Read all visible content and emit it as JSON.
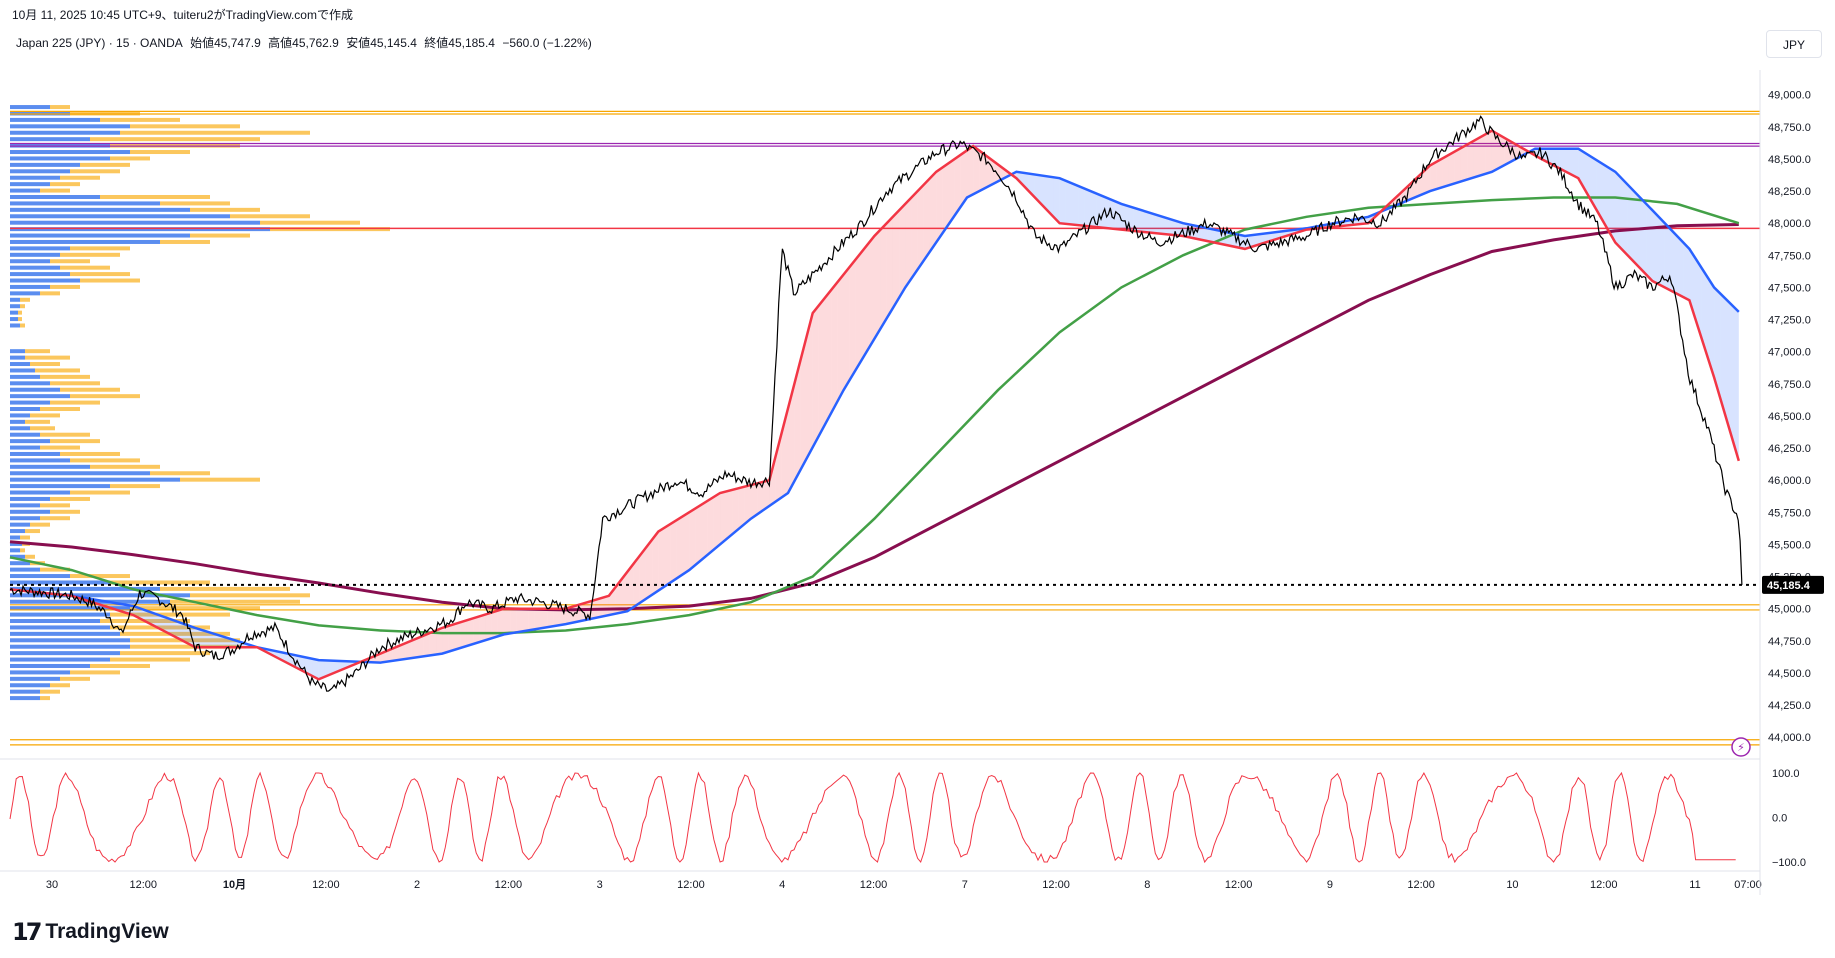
{
  "header": {
    "created_line": "10月 11, 2025 10:45 UTC+9、tuiteru2がTradingView.comで作成"
  },
  "symbol": {
    "name": "Japan 225 (JPY) · 15 · OANDA",
    "open": "始値45,747.9",
    "high": "高値45,762.9",
    "low": "安値45,145.4",
    "close": "終値45,185.4",
    "change": "−560.0 (−1.22%)"
  },
  "currency_button": "JPY",
  "logo": {
    "mark": "17",
    "text": "TradingView"
  },
  "colors": {
    "price": "#000000",
    "ema_fast": "#f23645",
    "ema_slow": "#2962ff",
    "sma_green": "#43a047",
    "sma_maroon": "#880e4f",
    "vp_up": "#5b8def",
    "vp_down": "#fbc75e",
    "hline_orange": "#f7a600",
    "hline_purple": "#9c27b0",
    "hline_red": "#f23645",
    "oscillator": "#f23645"
  },
  "chart_data": {
    "type": "line",
    "y_axis": {
      "min": 43900,
      "max": 49130,
      "ticks": [
        "49,000.0",
        "48,750.0",
        "48,500.0",
        "48,250.0",
        "48,000.0",
        "47,750.0",
        "47,500.0",
        "47,250.0",
        "47,000.0",
        "46,750.0",
        "46,500.0",
        "46,250.0",
        "46,000.0",
        "45,750.0",
        "45,500.0",
        "45,250.0",
        "45,000.0",
        "44,750.0",
        "44,500.0",
        "44,250.0",
        "44,000.0"
      ],
      "tick_values": [
        49000,
        48750,
        48500,
        48250,
        48000,
        47750,
        47500,
        47250,
        47000,
        46750,
        46500,
        46250,
        46000,
        45750,
        45500,
        45250,
        45000,
        44750,
        44500,
        44250,
        44000
      ]
    },
    "x_axis": {
      "labels": [
        "30",
        "12:00",
        "10月",
        "12:00",
        "2",
        "12:00",
        "3",
        "12:00",
        "4",
        "12:00",
        "7",
        "12:00",
        "8",
        "12:00",
        "9",
        "12:00",
        "10",
        "12:00",
        "11",
        "07:00"
      ],
      "positions": [
        1,
        2,
        3,
        4,
        5,
        6,
        7,
        8,
        9,
        10,
        11,
        12,
        13,
        14,
        15,
        16,
        17,
        18,
        19,
        20
      ]
    },
    "last_price": {
      "label": "45,185.4",
      "value": 45185.4
    },
    "horizontal_lines": [
      {
        "value": 48870,
        "color": "orange"
      },
      {
        "value": 48850,
        "color": "orange"
      },
      {
        "value": 48620,
        "color": "purple"
      },
      {
        "value": 48600,
        "color": "purple"
      },
      {
        "value": 47960,
        "color": "red"
      },
      {
        "value": 45030,
        "color": "orange"
      },
      {
        "value": 44990,
        "color": "orange"
      },
      {
        "value": 43980,
        "color": "orange"
      },
      {
        "value": 43940,
        "color": "orange"
      }
    ],
    "price": [
      [
        0,
        45150
      ],
      [
        0.5,
        45130
      ],
      [
        1,
        45100
      ],
      [
        1.3,
        45050
      ],
      [
        1.6,
        44950
      ],
      [
        1.8,
        44800
      ],
      [
        2.1,
        45120
      ],
      [
        2.4,
        45080
      ],
      [
        2.8,
        44950
      ],
      [
        3,
        44700
      ],
      [
        3.3,
        44630
      ],
      [
        3.6,
        44680
      ],
      [
        3.9,
        44800
      ],
      [
        4.3,
        44850
      ],
      [
        4.6,
        44620
      ],
      [
        4.9,
        44420
      ],
      [
        5.2,
        44350
      ],
      [
        5.6,
        44500
      ],
      [
        6,
        44700
      ],
      [
        6.4,
        44780
      ],
      [
        6.8,
        44850
      ],
      [
        7.1,
        44900
      ],
      [
        7.4,
        45050
      ],
      [
        7.8,
        45000
      ],
      [
        8.2,
        45080
      ],
      [
        8.6,
        45050
      ],
      [
        9,
        45000
      ],
      [
        9.4,
        44950
      ],
      [
        9.6,
        45700
      ],
      [
        10,
        45800
      ],
      [
        10.4,
        45900
      ],
      [
        10.8,
        46000
      ],
      [
        11.2,
        45900
      ],
      [
        11.6,
        46050
      ],
      [
        12,
        45980
      ],
      [
        12.3,
        46000
      ],
      [
        12.5,
        47800
      ],
      [
        12.7,
        47450
      ],
      [
        13,
        47600
      ],
      [
        13.4,
        47800
      ],
      [
        13.8,
        48000
      ],
      [
        14.2,
        48250
      ],
      [
        14.6,
        48400
      ],
      [
        15,
        48550
      ],
      [
        15.4,
        48620
      ],
      [
        15.8,
        48500
      ],
      [
        16,
        48400
      ],
      [
        16.3,
        48200
      ],
      [
        16.6,
        47900
      ],
      [
        17,
        47800
      ],
      [
        17.4,
        47950
      ],
      [
        17.8,
        48100
      ],
      [
        18.2,
        47950
      ],
      [
        18.6,
        47850
      ],
      [
        19,
        47920
      ],
      [
        19.4,
        48000
      ],
      [
        19.8,
        47900
      ],
      [
        20.2,
        47800
      ],
      [
        20.6,
        47850
      ],
      [
        21,
        47900
      ],
      [
        21.4,
        48000
      ],
      [
        21.8,
        48050
      ],
      [
        22.2,
        48000
      ],
      [
        22.6,
        48200
      ],
      [
        23,
        48500
      ],
      [
        23.4,
        48650
      ],
      [
        23.8,
        48800
      ],
      [
        24.1,
        48650
      ],
      [
        24.5,
        48500
      ],
      [
        24.8,
        48550
      ],
      [
        25.1,
        48400
      ],
      [
        25.4,
        48150
      ],
      [
        25.7,
        48000
      ],
      [
        26,
        47500
      ],
      [
        26.3,
        47600
      ],
      [
        26.6,
        47500
      ],
      [
        26.9,
        47600
      ],
      [
        27.2,
        46800
      ],
      [
        27.5,
        46400
      ],
      [
        27.8,
        45900
      ],
      [
        28,
        45700
      ],
      [
        28.05,
        45185
      ]
    ],
    "ema_fast": [
      [
        0,
        45150
      ],
      [
        1,
        45100
      ],
      [
        2,
        44950
      ],
      [
        3,
        44700
      ],
      [
        4,
        44700
      ],
      [
        5,
        44450
      ],
      [
        6,
        44650
      ],
      [
        7,
        44850
      ],
      [
        8,
        45000
      ],
      [
        9,
        45000
      ],
      [
        9.7,
        45100
      ],
      [
        10.5,
        45600
      ],
      [
        11.5,
        45900
      ],
      [
        12.3,
        46000
      ],
      [
        13,
        47300
      ],
      [
        14,
        47900
      ],
      [
        15,
        48400
      ],
      [
        15.6,
        48600
      ],
      [
        16.3,
        48350
      ],
      [
        17,
        48000
      ],
      [
        18,
        47950
      ],
      [
        19,
        47900
      ],
      [
        20,
        47800
      ],
      [
        21,
        47950
      ],
      [
        22,
        48000
      ],
      [
        23,
        48450
      ],
      [
        24,
        48720
      ],
      [
        24.8,
        48500
      ],
      [
        25.4,
        48350
      ],
      [
        26,
        47850
      ],
      [
        26.6,
        47550
      ],
      [
        27.2,
        47400
      ],
      [
        27.6,
        46800
      ],
      [
        28,
        46150
      ]
    ],
    "ema_slow": [
      [
        0,
        45150
      ],
      [
        1,
        45100
      ],
      [
        2,
        45020
      ],
      [
        3,
        44850
      ],
      [
        4,
        44700
      ],
      [
        5,
        44600
      ],
      [
        6,
        44580
      ],
      [
        7,
        44650
      ],
      [
        8,
        44800
      ],
      [
        9,
        44880
      ],
      [
        10,
        44980
      ],
      [
        11,
        45300
      ],
      [
        12,
        45700
      ],
      [
        12.6,
        45900
      ],
      [
        13.5,
        46700
      ],
      [
        14.5,
        47500
      ],
      [
        15.5,
        48200
      ],
      [
        16.3,
        48400
      ],
      [
        17,
        48350
      ],
      [
        18,
        48150
      ],
      [
        19,
        48000
      ],
      [
        20,
        47900
      ],
      [
        21,
        47960
      ],
      [
        22,
        48050
      ],
      [
        23,
        48250
      ],
      [
        24,
        48400
      ],
      [
        24.7,
        48580
      ],
      [
        25.4,
        48580
      ],
      [
        26,
        48400
      ],
      [
        26.6,
        48100
      ],
      [
        27.2,
        47800
      ],
      [
        27.6,
        47500
      ],
      [
        28,
        47310
      ]
    ],
    "sma_green": [
      [
        0,
        45400
      ],
      [
        1,
        45300
      ],
      [
        2,
        45150
      ],
      [
        3,
        45050
      ],
      [
        4,
        44950
      ],
      [
        5,
        44870
      ],
      [
        6,
        44830
      ],
      [
        7,
        44810
      ],
      [
        8,
        44810
      ],
      [
        9,
        44830
      ],
      [
        10,
        44880
      ],
      [
        11,
        44950
      ],
      [
        12,
        45050
      ],
      [
        13,
        45250
      ],
      [
        14,
        45700
      ],
      [
        15,
        46200
      ],
      [
        16,
        46700
      ],
      [
        17,
        47150
      ],
      [
        18,
        47500
      ],
      [
        19,
        47750
      ],
      [
        20,
        47950
      ],
      [
        21,
        48050
      ],
      [
        22,
        48120
      ],
      [
        23,
        48150
      ],
      [
        24,
        48180
      ],
      [
        25,
        48200
      ],
      [
        26,
        48200
      ],
      [
        27,
        48150
      ],
      [
        28,
        48000
      ]
    ],
    "sma_maroon": [
      [
        0,
        45520
      ],
      [
        1,
        45480
      ],
      [
        2,
        45420
      ],
      [
        3,
        45350
      ],
      [
        4,
        45270
      ],
      [
        5,
        45200
      ],
      [
        6,
        45120
      ],
      [
        7,
        45050
      ],
      [
        8,
        45000
      ],
      [
        9,
        44990
      ],
      [
        10,
        45000
      ],
      [
        11,
        45020
      ],
      [
        12,
        45080
      ],
      [
        13,
        45200
      ],
      [
        14,
        45400
      ],
      [
        15,
        45650
      ],
      [
        16,
        45900
      ],
      [
        17,
        46150
      ],
      [
        18,
        46400
      ],
      [
        19,
        46650
      ],
      [
        20,
        46900
      ],
      [
        21,
        47150
      ],
      [
        22,
        47400
      ],
      [
        23,
        47600
      ],
      [
        24,
        47780
      ],
      [
        25,
        47870
      ],
      [
        26,
        47940
      ],
      [
        27,
        47980
      ],
      [
        28,
        47990
      ]
    ],
    "volume_profile": {
      "bins": [
        [
          48900,
          40,
          60
        ],
        [
          48850,
          60,
          130
        ],
        [
          48800,
          90,
          170
        ],
        [
          48750,
          120,
          230
        ],
        [
          48700,
          110,
          300
        ],
        [
          48650,
          80,
          250
        ],
        [
          48600,
          100,
          230
        ],
        [
          48550,
          120,
          180
        ],
        [
          48500,
          100,
          140
        ],
        [
          48450,
          70,
          120
        ],
        [
          48400,
          60,
          110
        ],
        [
          48350,
          50,
          90
        ],
        [
          48300,
          40,
          70
        ],
        [
          48250,
          30,
          60
        ],
        [
          48200,
          90,
          200
        ],
        [
          48150,
          150,
          220
        ],
        [
          48100,
          180,
          250
        ],
        [
          48050,
          220,
          300
        ],
        [
          48000,
          250,
          350
        ],
        [
          47950,
          260,
          380
        ],
        [
          47900,
          180,
          240
        ],
        [
          47850,
          150,
          200
        ],
        [
          47800,
          60,
          120
        ],
        [
          47750,
          50,
          110
        ],
        [
          47700,
          40,
          80
        ],
        [
          47650,
          50,
          100
        ],
        [
          47600,
          60,
          120
        ],
        [
          47550,
          70,
          130
        ],
        [
          47500,
          40,
          70
        ],
        [
          47450,
          30,
          50
        ],
        [
          47400,
          10,
          20
        ],
        [
          47350,
          10,
          15
        ],
        [
          47300,
          8,
          12
        ],
        [
          47250,
          8,
          12
        ],
        [
          47200,
          10,
          15
        ],
        [
          47000,
          15,
          40
        ],
        [
          46950,
          15,
          60
        ],
        [
          46900,
          20,
          50
        ],
        [
          46850,
          25,
          70
        ],
        [
          46800,
          30,
          80
        ],
        [
          46750,
          40,
          90
        ],
        [
          46700,
          50,
          110
        ],
        [
          46650,
          60,
          130
        ],
        [
          46600,
          40,
          90
        ],
        [
          46550,
          30,
          70
        ],
        [
          46500,
          20,
          50
        ],
        [
          46450,
          15,
          40
        ],
        [
          46400,
          20,
          45
        ],
        [
          46350,
          30,
          80
        ],
        [
          46300,
          40,
          90
        ],
        [
          46250,
          30,
          70
        ],
        [
          46200,
          50,
          110
        ],
        [
          46150,
          60,
          130
        ],
        [
          46100,
          80,
          150
        ],
        [
          46050,
          140,
          200
        ],
        [
          46000,
          170,
          250
        ],
        [
          45950,
          100,
          150
        ],
        [
          45900,
          60,
          120
        ],
        [
          45850,
          40,
          80
        ],
        [
          45800,
          30,
          60
        ],
        [
          45750,
          40,
          70
        ],
        [
          45700,
          30,
          60
        ],
        [
          45650,
          20,
          40
        ],
        [
          45600,
          15,
          30
        ],
        [
          45550,
          10,
          20
        ],
        [
          45500,
          12,
          20
        ],
        [
          45450,
          10,
          15
        ],
        [
          45400,
          15,
          25
        ],
        [
          45350,
          20,
          35
        ],
        [
          45300,
          30,
          60
        ],
        [
          45250,
          60,
          120
        ],
        [
          45200,
          100,
          200
        ],
        [
          45150,
          150,
          280
        ],
        [
          45100,
          180,
          300
        ],
        [
          45050,
          160,
          290
        ],
        [
          45000,
          120,
          250
        ],
        [
          44950,
          100,
          220
        ],
        [
          44900,
          90,
          180
        ],
        [
          44850,
          100,
          200
        ],
        [
          44800,
          110,
          220
        ],
        [
          44750,
          120,
          230
        ],
        [
          44700,
          120,
          230
        ],
        [
          44650,
          110,
          200
        ],
        [
          44600,
          100,
          180
        ],
        [
          44550,
          80,
          140
        ],
        [
          44500,
          60,
          110
        ],
        [
          44450,
          50,
          80
        ],
        [
          44400,
          40,
          60
        ],
        [
          44350,
          30,
          50
        ],
        [
          44300,
          30,
          40
        ]
      ]
    },
    "oscillator": {
      "ticks": [
        "100.0",
        "0.0",
        "−100.0"
      ],
      "tick_values": [
        100,
        0,
        -100
      ]
    }
  }
}
